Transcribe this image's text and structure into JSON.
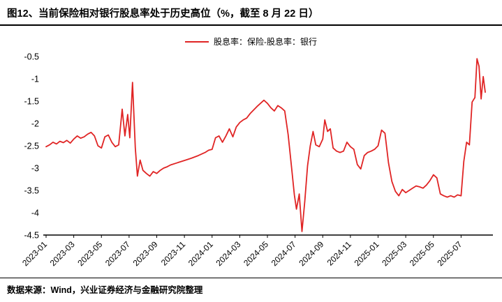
{
  "title": "图12、当前保险相对银行股息率处于历史高位（%，截至 8 月 22 日）",
  "footer": "数据来源：Wind，兴业证券经济与金融研究院整理",
  "legend_label": "股息率：保险-股息率：银行",
  "colors": {
    "line": "#E02424",
    "axis": "#000000",
    "text": "#000000"
  },
  "chart_data": {
    "type": "line",
    "title": "图12、当前保险相对银行股息率处于历史高位（%，截至 8 月 22 日）",
    "xlabel": "",
    "ylabel": "",
    "legend": [
      "股息率：保险-股息率：银行"
    ],
    "legend_position": "top-center",
    "grid": false,
    "ylim": [
      -4.5,
      -0.5
    ],
    "yticks": [
      "-0.5",
      "-1",
      "-1.5",
      "-2",
      "-2.5",
      "-3",
      "-3.5",
      "-4",
      "-4.5"
    ],
    "ytick_values": [
      -0.5,
      -1,
      -1.5,
      -2,
      -2.5,
      -3,
      -3.5,
      -4,
      -4.5
    ],
    "x_range_months": [
      0,
      32
    ],
    "xtick_positions_months": [
      0,
      2,
      4,
      6,
      8,
      10,
      12,
      14,
      16,
      18,
      20,
      22,
      24,
      26,
      28,
      30
    ],
    "xtick_labels": [
      "2023-01",
      "2023-03",
      "2023-05",
      "2023-07",
      "2023-09",
      "2023-11",
      "2024-01",
      "2024-03",
      "2024-05",
      "2024-07",
      "2024-09",
      "2024-11",
      "2025-01",
      "2025-03",
      "2025-05",
      "2025-07"
    ],
    "series": [
      {
        "name": "股息率：保险-股息率：银行",
        "color": "#E02424",
        "x": [
          0.0,
          0.25,
          0.5,
          0.75,
          1.0,
          1.25,
          1.5,
          1.75,
          2.0,
          2.25,
          2.5,
          2.75,
          3.0,
          3.25,
          3.5,
          3.75,
          4.0,
          4.25,
          4.5,
          4.75,
          5.0,
          5.25,
          5.5,
          5.7,
          5.9,
          6.05,
          6.25,
          6.45,
          6.6,
          6.8,
          7.0,
          7.25,
          7.5,
          7.75,
          8.0,
          8.25,
          8.5,
          8.75,
          9.0,
          9.5,
          10.0,
          10.5,
          11.0,
          11.5,
          11.75,
          12.0,
          12.25,
          12.5,
          12.75,
          13.0,
          13.25,
          13.5,
          13.75,
          14.0,
          14.25,
          14.5,
          14.75,
          15.0,
          15.25,
          15.5,
          15.75,
          16.0,
          16.25,
          16.5,
          16.75,
          17.0,
          17.25,
          17.5,
          17.75,
          17.95,
          18.1,
          18.3,
          18.5,
          18.7,
          18.9,
          19.1,
          19.3,
          19.5,
          19.75,
          20.0,
          20.15,
          20.35,
          20.55,
          20.75,
          21.0,
          21.25,
          21.5,
          21.75,
          22.0,
          22.25,
          22.5,
          22.75,
          23.0,
          23.25,
          23.5,
          23.75,
          24.0,
          24.25,
          24.5,
          24.75,
          25.0,
          25.25,
          25.5,
          25.75,
          26.0,
          26.25,
          26.5,
          26.75,
          27.0,
          27.25,
          27.5,
          27.75,
          28.0,
          28.25,
          28.5,
          28.75,
          29.0,
          29.25,
          29.5,
          29.75,
          30.0,
          30.2,
          30.4,
          30.6,
          30.8,
          31.0,
          31.15,
          31.3,
          31.45,
          31.6,
          31.75
        ],
        "values": [
          -2.52,
          -2.48,
          -2.42,
          -2.46,
          -2.4,
          -2.43,
          -2.38,
          -2.44,
          -2.35,
          -2.28,
          -2.33,
          -2.3,
          -2.24,
          -2.2,
          -2.28,
          -2.5,
          -2.55,
          -2.3,
          -2.26,
          -2.42,
          -2.52,
          -2.48,
          -1.68,
          -2.28,
          -1.8,
          -2.32,
          -1.08,
          -2.55,
          -3.18,
          -2.82,
          -3.05,
          -3.12,
          -3.18,
          -3.08,
          -3.12,
          -3.05,
          -3.0,
          -2.97,
          -2.93,
          -2.88,
          -2.83,
          -2.78,
          -2.72,
          -2.65,
          -2.6,
          -2.58,
          -2.32,
          -2.28,
          -2.42,
          -2.28,
          -2.12,
          -2.3,
          -2.08,
          -1.98,
          -1.92,
          -1.88,
          -1.78,
          -1.7,
          -1.62,
          -1.55,
          -1.48,
          -1.55,
          -1.65,
          -1.72,
          -1.6,
          -1.65,
          -1.72,
          -2.25,
          -3.0,
          -3.6,
          -3.92,
          -3.58,
          -4.42,
          -3.75,
          -2.95,
          -2.5,
          -2.18,
          -2.48,
          -2.52,
          -2.35,
          -1.92,
          -2.18,
          -2.12,
          -2.55,
          -2.62,
          -2.65,
          -2.62,
          -2.42,
          -2.52,
          -2.58,
          -2.92,
          -3.02,
          -2.72,
          -2.65,
          -2.62,
          -2.58,
          -2.5,
          -2.15,
          -2.22,
          -2.88,
          -3.3,
          -3.52,
          -3.62,
          -3.48,
          -3.55,
          -3.5,
          -3.45,
          -3.4,
          -3.42,
          -3.45,
          -3.38,
          -3.28,
          -3.15,
          -3.22,
          -3.58,
          -3.62,
          -3.65,
          -3.62,
          -3.65,
          -3.6,
          -3.62,
          -2.85,
          -2.42,
          -2.48,
          -1.52,
          -1.42,
          -0.55,
          -0.72,
          -1.45,
          -0.95,
          -1.3
        ]
      }
    ]
  }
}
